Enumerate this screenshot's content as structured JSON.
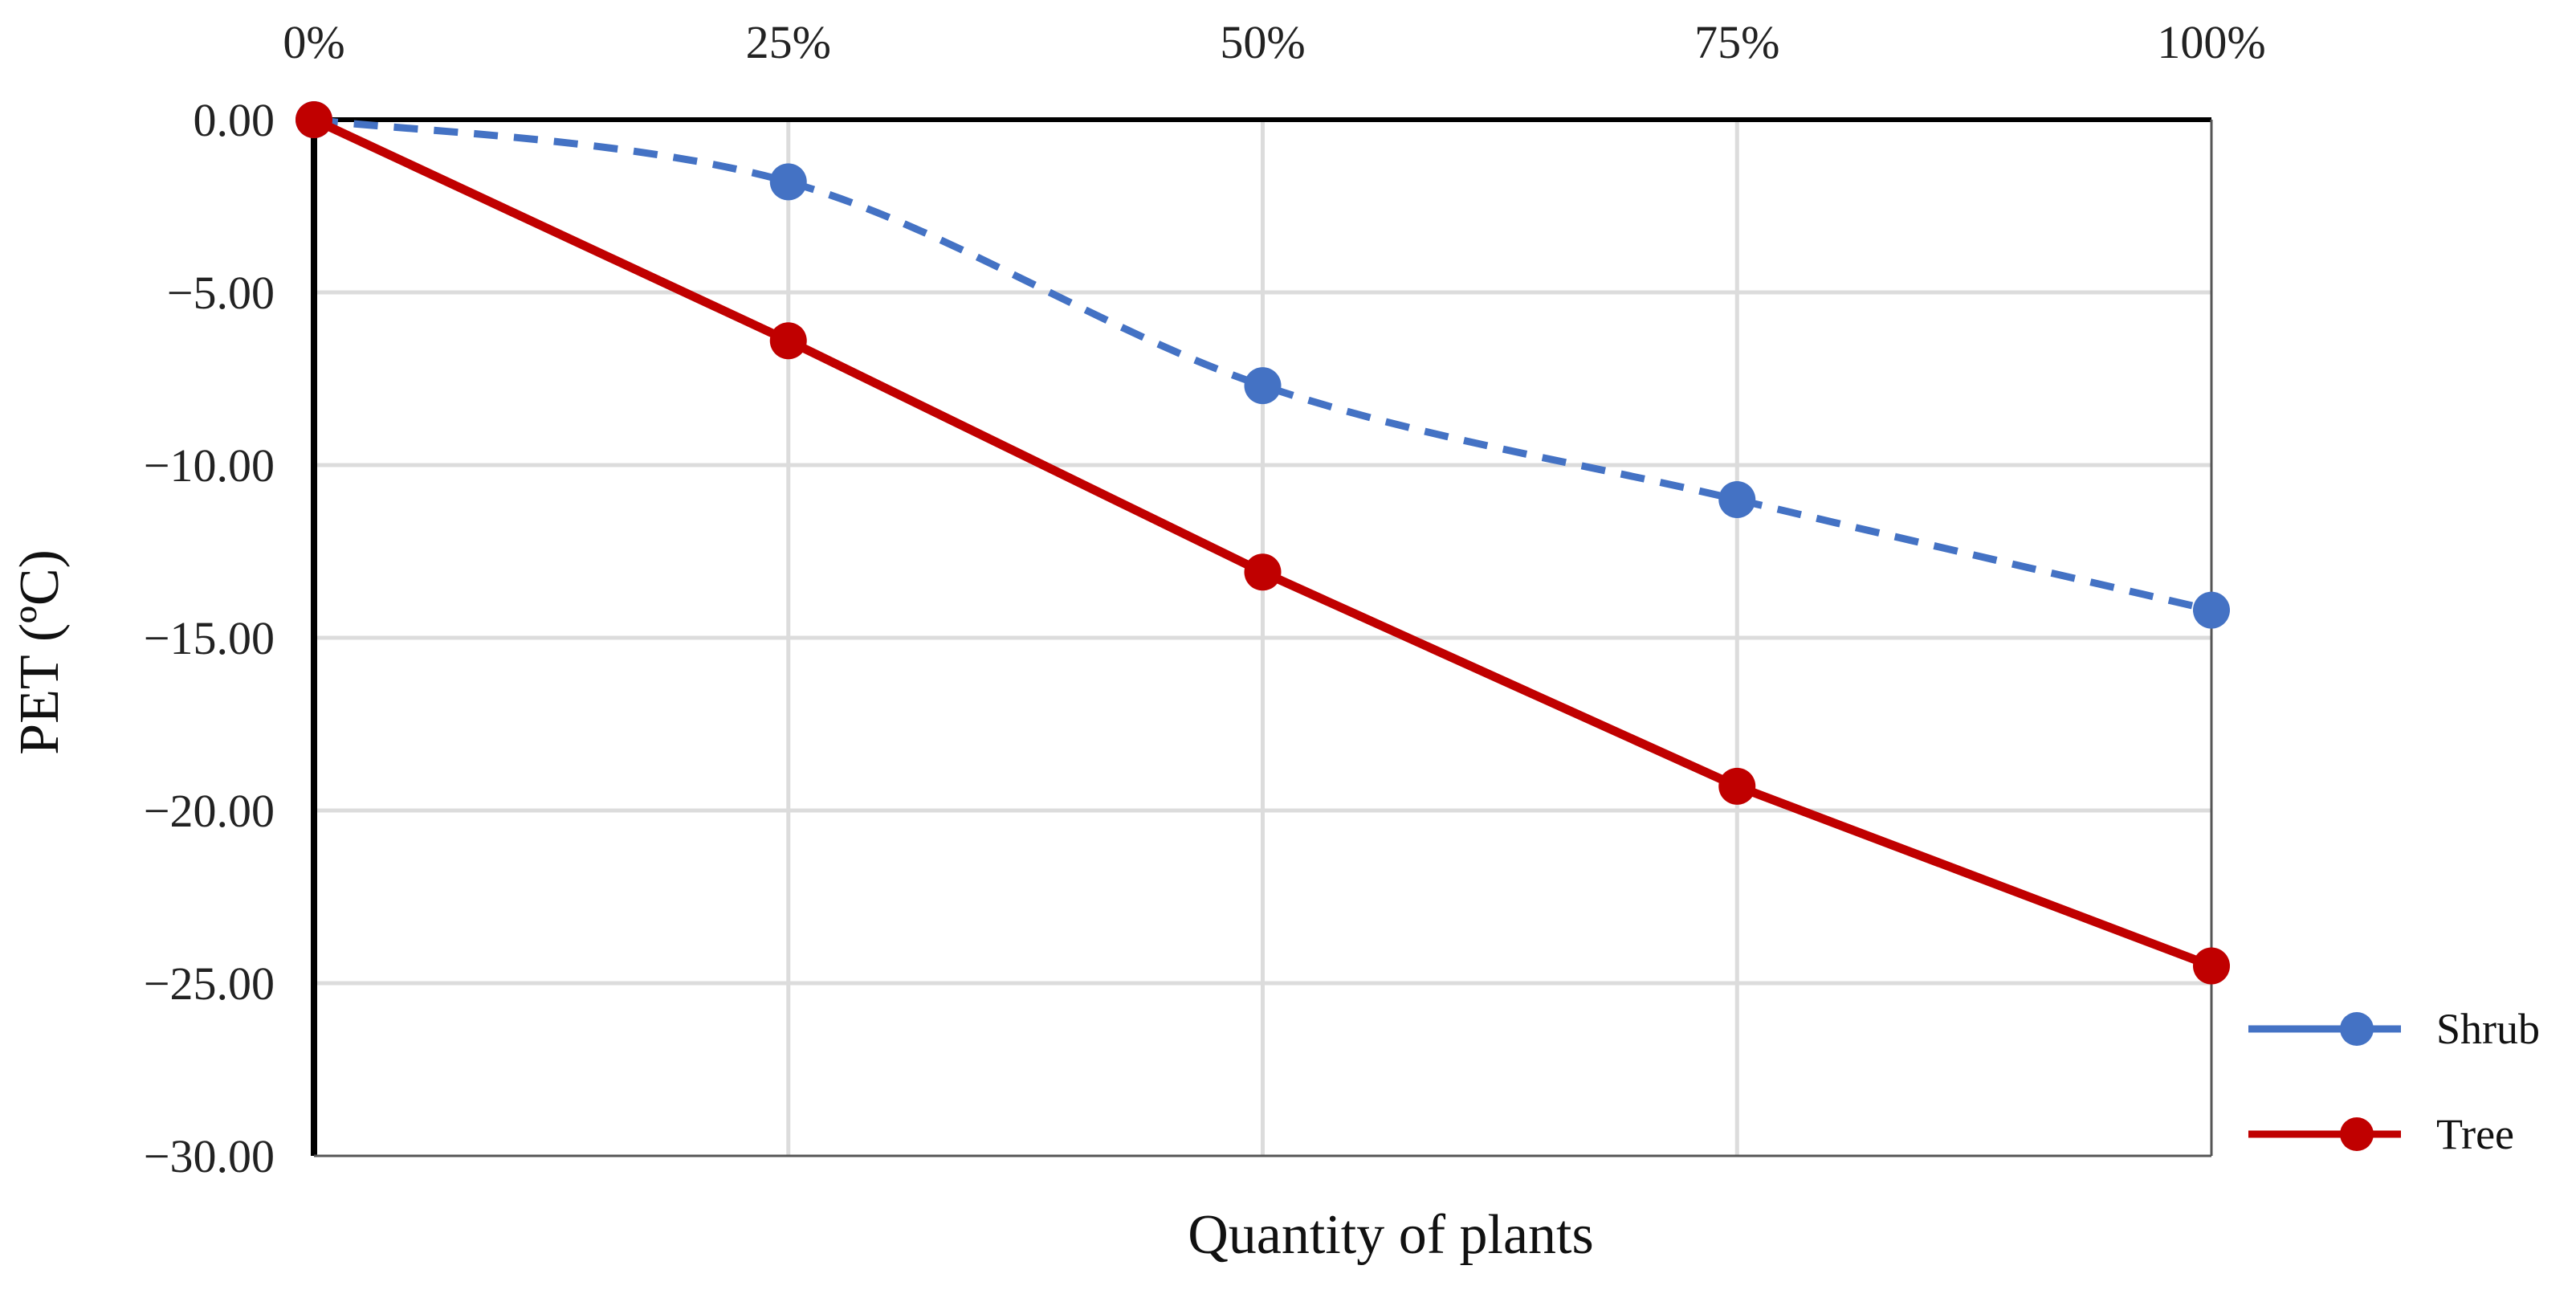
{
  "chart_data": {
    "type": "line",
    "title": "",
    "xlabel": "Quantity of plants",
    "ylabel": "PET (ºC)",
    "x_position": "top",
    "categories": [
      "0%",
      "25%",
      "50%",
      "75%",
      "100%"
    ],
    "x_values": [
      0,
      25,
      50,
      75,
      100
    ],
    "ylim": [
      -30,
      0
    ],
    "y_ticks": [
      0,
      -5,
      -10,
      -15,
      -20,
      -25,
      -30
    ],
    "y_tick_labels": [
      "0.00",
      "−5.00",
      "−10.00",
      "−15.00",
      "−20.00",
      "−25.00",
      "−30.00"
    ],
    "grid": true,
    "legend_position": "right",
    "series": [
      {
        "name": "Shrub",
        "values": [
          0.0,
          -1.8,
          -7.7,
          -11.0,
          -14.2
        ],
        "color": "#4472C4",
        "style": "dashed",
        "smooth": true
      },
      {
        "name": "Tree",
        "values": [
          0.0,
          -6.4,
          -13.1,
          -19.3,
          -24.5
        ],
        "color": "#C00000",
        "style": "solid",
        "smooth": false
      }
    ]
  }
}
